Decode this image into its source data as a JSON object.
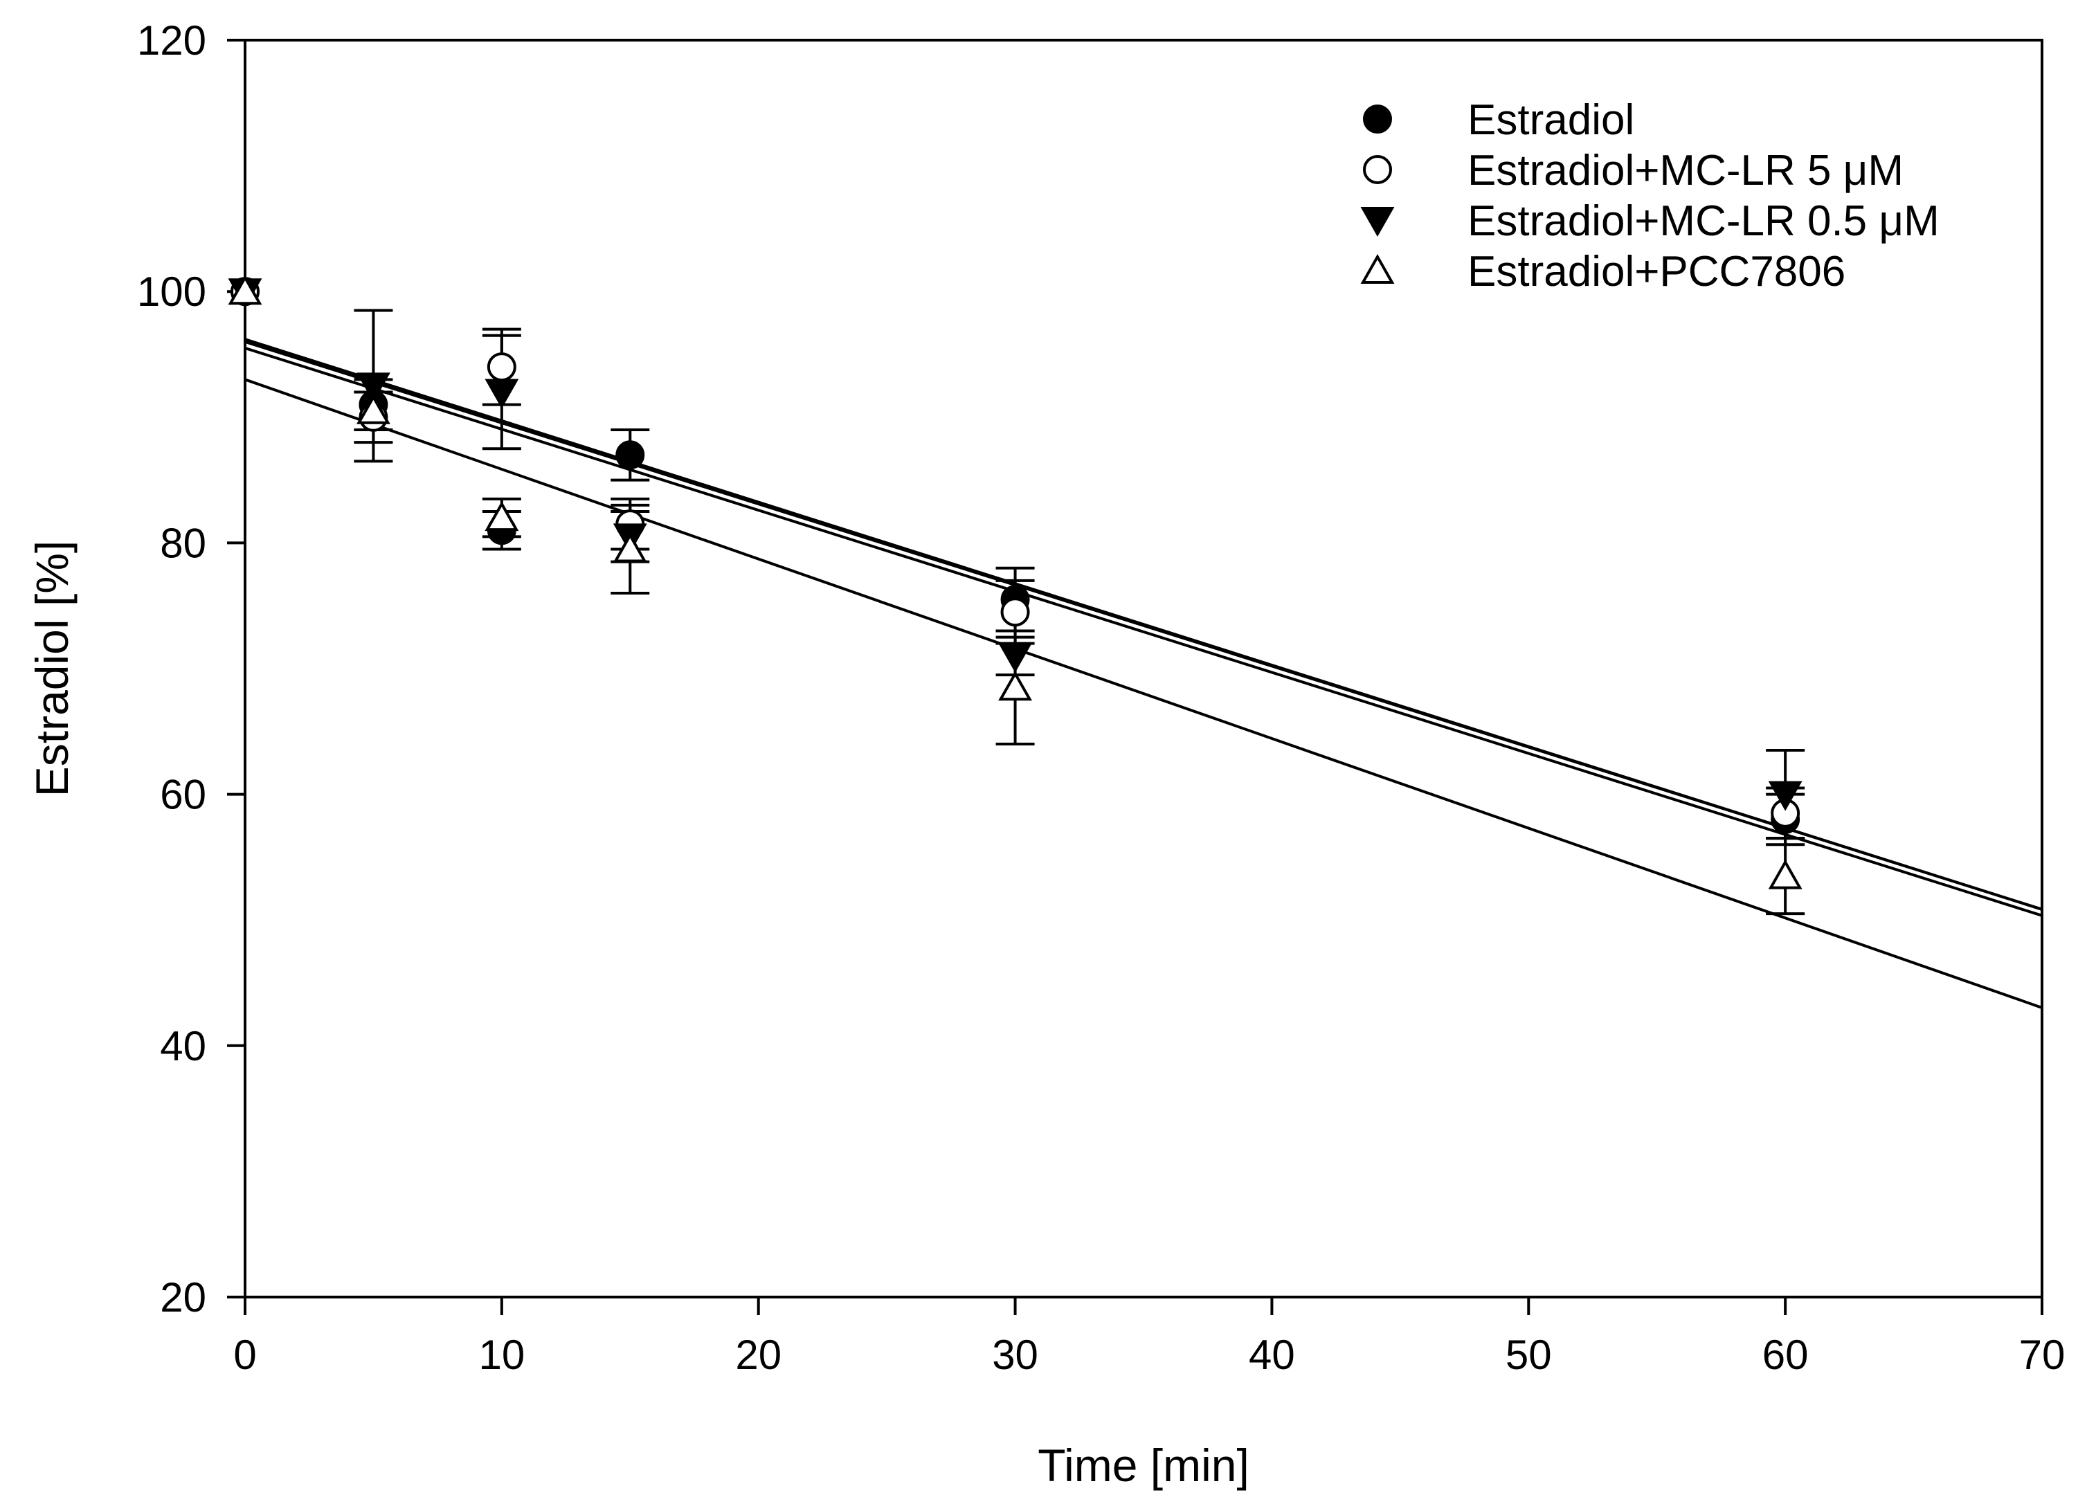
{
  "chart_data": {
    "type": "scatter",
    "title": "",
    "xlabel": "Time [min]",
    "ylabel": "Estradiol [%]",
    "xlim": [
      0,
      70
    ],
    "ylim": [
      20,
      120
    ],
    "xticks": [
      0,
      10,
      20,
      30,
      40,
      50,
      60,
      70
    ],
    "yticks": [
      20,
      40,
      60,
      80,
      100,
      120
    ],
    "grid": false,
    "legend_position": "top-right",
    "series": [
      {
        "name": "Estradiol",
        "marker": "filled-circle",
        "x": [
          0,
          5,
          10,
          15,
          30,
          60
        ],
        "y": [
          100,
          91,
          81,
          87,
          75.5,
          58
        ],
        "err": [
          0,
          2,
          1.5,
          2,
          2.5,
          2
        ],
        "fit": {
          "intercept": 96.2,
          "slope": -0.648
        }
      },
      {
        "name": "Estradiol+MC-LR 5 μM",
        "marker": "open-circle",
        "x": [
          0,
          5,
          10,
          15,
          30,
          60
        ],
        "y": [
          100,
          90,
          94,
          81.5,
          74.5,
          58.5
        ],
        "err": [
          0,
          2,
          3,
          2,
          2.5,
          2
        ],
        "fit": {
          "intercept": 95.5,
          "slope": -0.645
        }
      },
      {
        "name": "Estradiol+MC-LR 0.5 μM",
        "marker": "filled-triangle-down",
        "x": [
          0,
          5,
          10,
          15,
          30,
          60
        ],
        "y": [
          100,
          92.5,
          92,
          80.5,
          71,
          60
        ],
        "err": [
          0,
          6,
          4.5,
          2,
          1.5,
          3.5
        ],
        "fit": {
          "intercept": 96.0,
          "slope": -0.645
        }
      },
      {
        "name": "Estradiol+PCC7806",
        "marker": "open-triangle-up",
        "x": [
          0,
          5,
          10,
          15,
          30,
          60
        ],
        "y": [
          100,
          90.5,
          82,
          79.5,
          68.5,
          53.5
        ],
        "err": [
          0,
          1.5,
          1.5,
          3.5,
          4.5,
          3
        ],
        "fit": {
          "intercept": 93.0,
          "slope": -0.714
        }
      }
    ]
  }
}
